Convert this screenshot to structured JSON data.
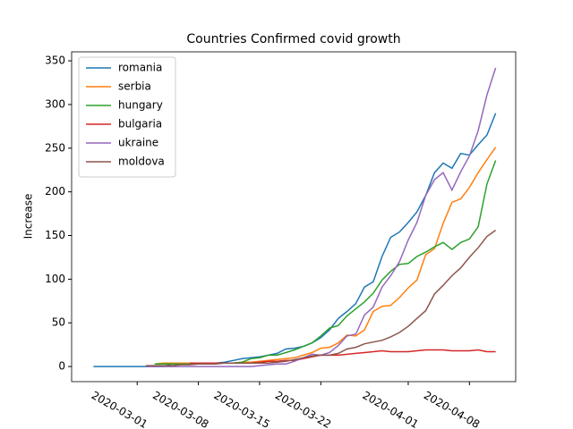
{
  "chart_data": {
    "type": "line",
    "title": "Countries Confirmed covid growth",
    "ylabel": "Increase",
    "x": [
      "2020-02-25",
      "2020-02-26",
      "2020-02-27",
      "2020-02-28",
      "2020-02-29",
      "2020-03-01",
      "2020-03-02",
      "2020-03-03",
      "2020-03-04",
      "2020-03-05",
      "2020-03-06",
      "2020-03-07",
      "2020-03-08",
      "2020-03-09",
      "2020-03-10",
      "2020-03-11",
      "2020-03-12",
      "2020-03-13",
      "2020-03-14",
      "2020-03-15",
      "2020-03-16",
      "2020-03-17",
      "2020-03-18",
      "2020-03-19",
      "2020-03-20",
      "2020-03-21",
      "2020-03-22",
      "2020-03-23",
      "2020-03-24",
      "2020-03-25",
      "2020-03-26",
      "2020-03-27",
      "2020-03-28",
      "2020-03-29",
      "2020-03-30",
      "2020-03-31",
      "2020-04-01",
      "2020-04-02",
      "2020-04-03",
      "2020-04-04",
      "2020-04-05",
      "2020-04-06",
      "2020-04-07",
      "2020-04-08",
      "2020-04-09",
      "2020-04-10",
      "2020-04-11"
    ],
    "series": [
      {
        "name": "romania",
        "color": "#1f77b4",
        "values": [
          0,
          0,
          0,
          0,
          0,
          0,
          0,
          0,
          0,
          3,
          3,
          3,
          3,
          4,
          4,
          5,
          7,
          9,
          10,
          11,
          13,
          15,
          20,
          21,
          23,
          27,
          33,
          42,
          55,
          63,
          72,
          91,
          97,
          126,
          148,
          154,
          165,
          177,
          196,
          222,
          233,
          227,
          244,
          242,
          254,
          265,
          290
        ]
      },
      {
        "name": "serbia",
        "color": "#ff7f0e",
        "values": [
          null,
          null,
          null,
          null,
          null,
          null,
          null,
          3,
          4,
          4,
          4,
          4,
          4,
          4,
          4,
          4,
          4,
          5,
          5,
          6,
          7,
          8,
          9,
          10,
          13,
          16,
          21,
          22,
          27,
          36,
          35,
          42,
          63,
          69,
          70,
          79,
          90,
          99,
          128,
          135,
          164,
          188,
          192,
          205,
          222,
          237,
          251
        ]
      },
      {
        "name": "hungary",
        "color": "#2ca02c",
        "values": [
          null,
          null,
          null,
          null,
          null,
          null,
          null,
          3,
          3,
          3,
          3,
          3,
          3,
          3,
          4,
          4,
          4,
          5,
          9,
          10,
          13,
          13,
          16,
          19,
          23,
          27,
          35,
          44,
          47,
          58,
          66,
          74,
          84,
          99,
          109,
          117,
          118,
          126,
          131,
          137,
          142,
          134,
          142,
          146,
          160,
          209,
          236
        ]
      },
      {
        "name": "bulgaria",
        "color": "#d62728",
        "values": [
          null,
          null,
          null,
          null,
          null,
          null,
          null,
          null,
          null,
          null,
          null,
          4,
          4,
          4,
          4,
          4,
          4,
          4,
          4,
          5,
          6,
          6,
          7,
          7,
          9,
          11,
          13,
          13,
          13,
          14,
          15,
          16,
          17,
          18,
          17,
          17,
          17,
          18,
          19,
          19,
          19,
          18,
          18,
          18,
          19,
          17,
          17
        ]
      },
      {
        "name": "ukraine",
        "color": "#9467bd",
        "values": [
          null,
          null,
          null,
          null,
          null,
          null,
          0,
          0,
          0,
          0,
          0,
          0,
          0,
          0,
          0,
          0,
          0,
          0,
          0,
          1,
          2,
          3,
          3,
          6,
          10,
          14,
          13,
          16,
          24,
          35,
          37,
          59,
          68,
          91,
          104,
          120,
          145,
          165,
          196,
          214,
          222,
          202,
          223,
          241,
          270,
          311,
          342
        ]
      },
      {
        "name": "moldova",
        "color": "#8c564b",
        "values": [
          null,
          null,
          null,
          null,
          null,
          null,
          1,
          1,
          1,
          1,
          2,
          2,
          3,
          3,
          3,
          4,
          4,
          4,
          4,
          4,
          4,
          5,
          6,
          8,
          10,
          12,
          13,
          13,
          15,
          20,
          22,
          26,
          28,
          30,
          34,
          39,
          46,
          55,
          64,
          83,
          93,
          104,
          113,
          125,
          136,
          149,
          156
        ]
      }
    ],
    "xlim": [
      "2020-02-22T12:00",
      "2020-04-13T07:00"
    ],
    "xticks": [
      "2020-03-01",
      "2020-03-08",
      "2020-03-15",
      "2020-03-22",
      "2020-04-01",
      "2020-04-08"
    ],
    "ylim": [
      -17.3,
      360.3
    ],
    "yticks": [
      0,
      50,
      100,
      150,
      200,
      250,
      300,
      350
    ],
    "legend": "upper left"
  }
}
